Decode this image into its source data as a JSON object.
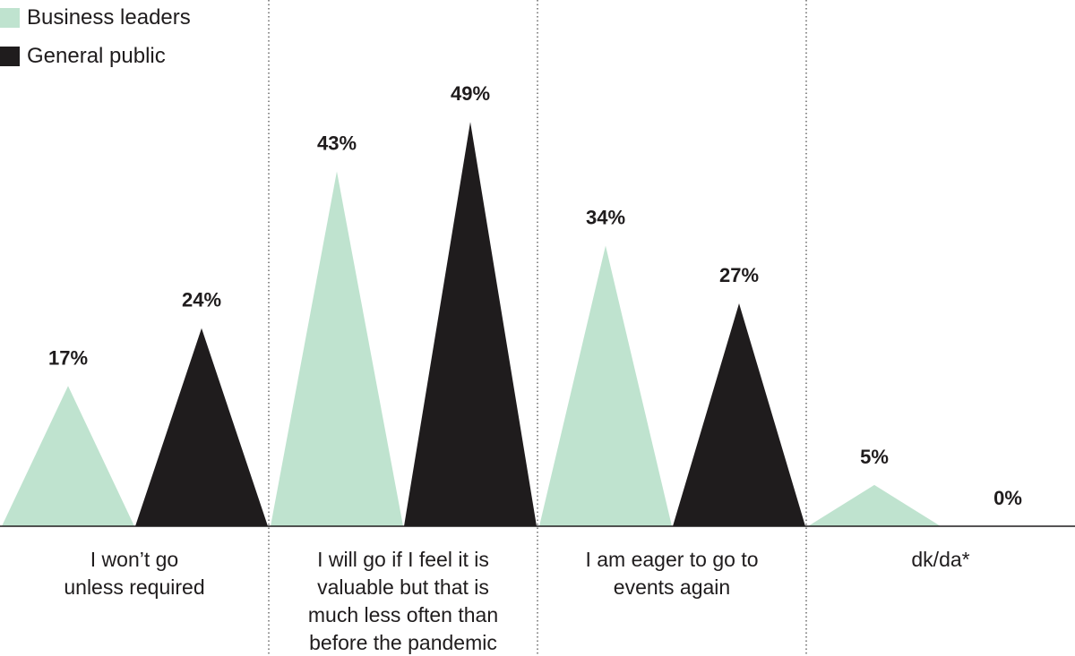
{
  "chart_data": {
    "type": "bar",
    "mark_shape": "triangle",
    "categories": [
      "I won’t go unless required",
      "I will go if I feel it is valuable but that is much less often than before the pandemic",
      "I am eager to go to events again",
      "dk/da*"
    ],
    "category_label_lines": [
      [
        "I won’t go",
        "unless required"
      ],
      [
        "I will go if I feel it is",
        "valuable but that is",
        "much less often than",
        "before the pandemic"
      ],
      [
        "I am eager to go to",
        "events again"
      ],
      [
        "dk/da*"
      ]
    ],
    "series": [
      {
        "name": "Business leaders",
        "values": [
          17,
          43,
          34,
          5
        ],
        "labels": [
          "17%",
          "43%",
          "34%",
          "5%"
        ],
        "color": "#bfe3cf"
      },
      {
        "name": "General public",
        "values": [
          24,
          49,
          27,
          0
        ],
        "labels": [
          "24%",
          "49%",
          "27%",
          "0%"
        ],
        "color": "#1f1c1d"
      }
    ],
    "unit": "%",
    "ylim": [
      0,
      50
    ],
    "grid": false,
    "category_separators": "dotted vertical",
    "legend_position": "top-left"
  }
}
